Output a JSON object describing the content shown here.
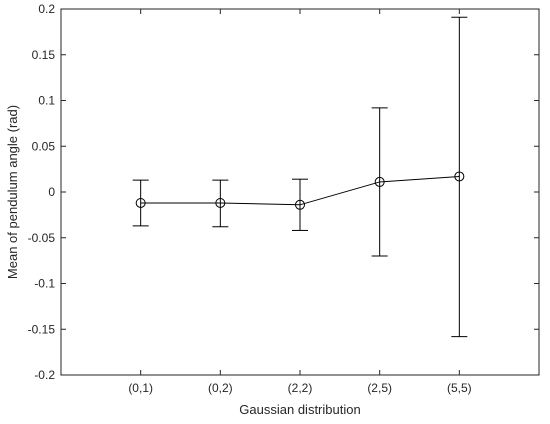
{
  "chart_data": {
    "type": "line",
    "title": "",
    "xlabel": "Gaussian distribution",
    "ylabel": "Mean of pendulum angle (rad)",
    "categories": [
      "(0,1)",
      "(0,2)",
      "(2,2)",
      "(2,5)",
      "(5,5)"
    ],
    "series": [
      {
        "values": [
          -0.012,
          -0.012,
          -0.014,
          0.011,
          0.017
        ],
        "error_low": [
          -0.037,
          -0.038,
          -0.042,
          -0.07,
          -0.158
        ],
        "error_high": [
          0.013,
          0.013,
          0.014,
          0.092,
          0.191
        ],
        "marker": "open-circle",
        "color": "#000000"
      }
    ],
    "ylim": [
      -0.2,
      0.2
    ],
    "yticks": [
      -0.2,
      -0.15,
      -0.1,
      -0.05,
      0,
      0.05,
      0.1,
      0.15,
      0.2
    ],
    "ytick_labels": [
      "-0.2",
      "-0.15",
      "-0.1",
      "-0.05",
      "0",
      "0.05",
      "0.1",
      "0.15",
      "0.2"
    ],
    "grid": false,
    "legend": "none",
    "axis_color": "#262626",
    "line_color": "#000000"
  }
}
